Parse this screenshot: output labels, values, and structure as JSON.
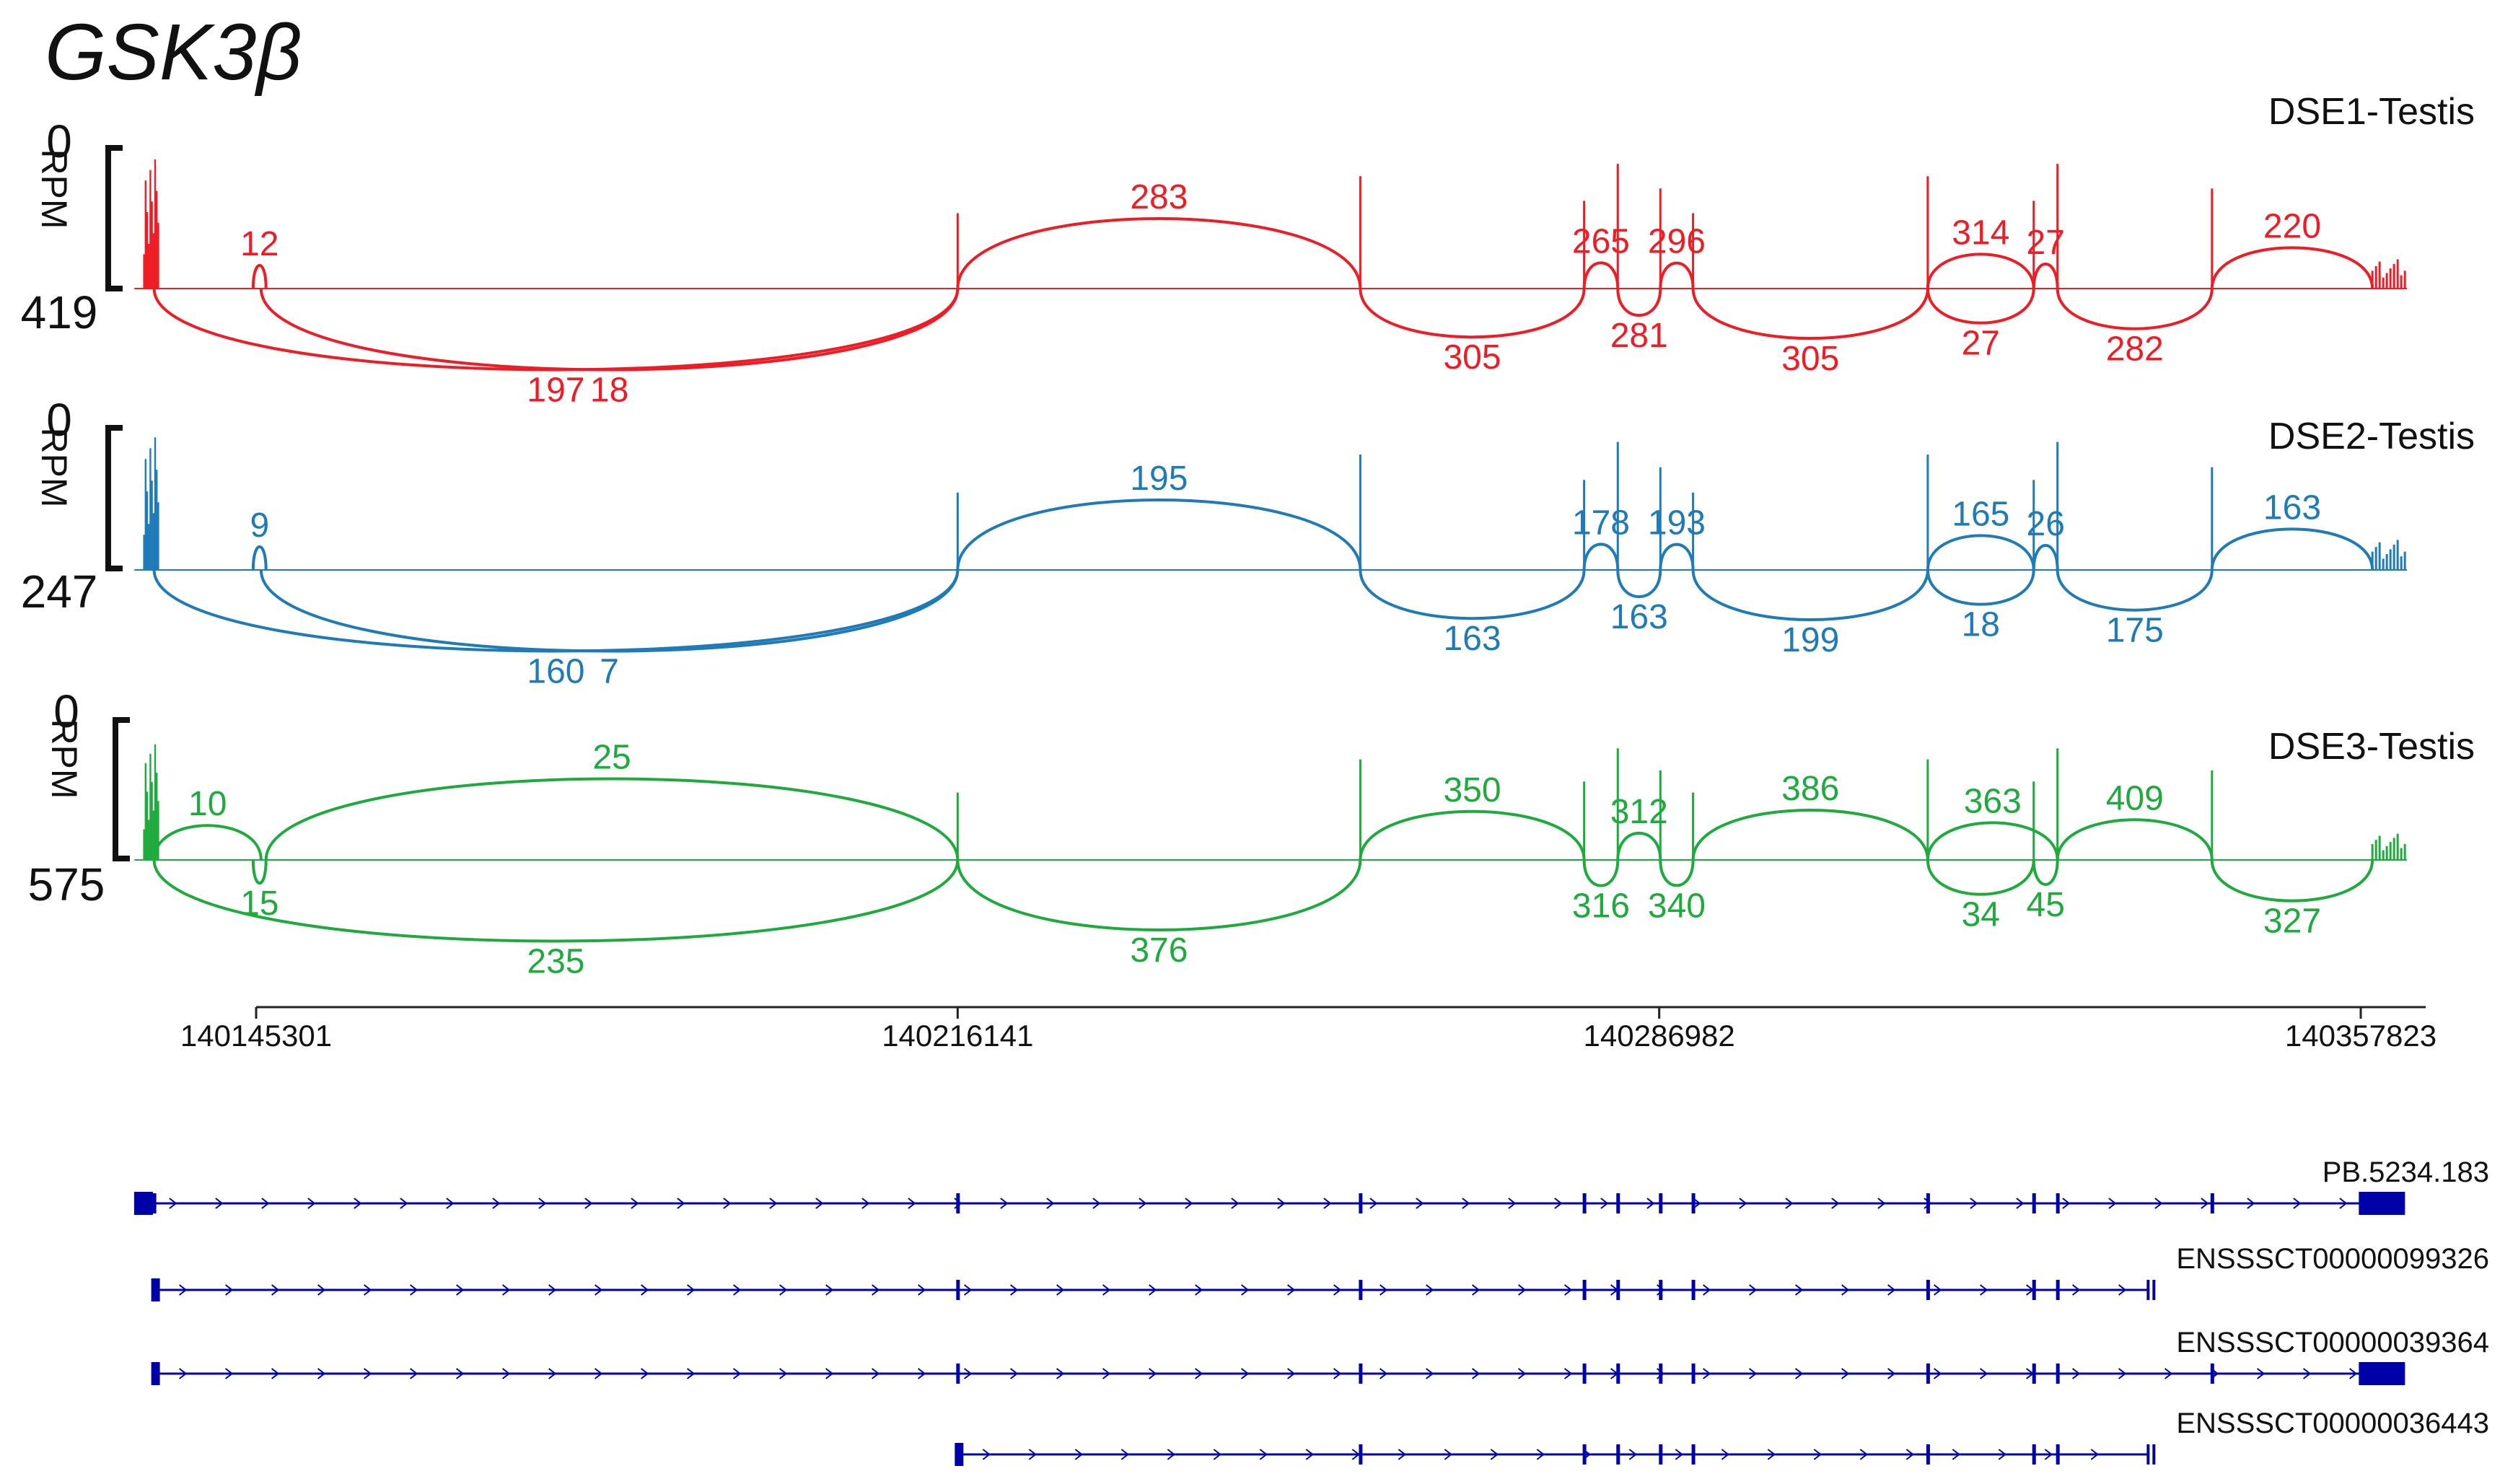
{
  "gene_title": "GSK3β",
  "colors": {
    "dse1": "#ee1c24",
    "dse2": "#1f7ab8",
    "dse3": "#1eaa3c",
    "annotation": "#0000a8",
    "axis": "#222222"
  },
  "tracks": [
    {
      "id": "dse1",
      "label": "DSE1-Testis",
      "scale_top": "0",
      "scale_bottom": "419",
      "scale_unit": "RPM",
      "junctions": [
        {
          "value": "12",
          "start": 140145000,
          "end": 140146300,
          "side": "up"
        },
        {
          "value": "197",
          "start": 140135000,
          "end": 140216141,
          "side": "down"
        },
        {
          "value": "18",
          "start": 140145800,
          "end": 140216141,
          "side": "down"
        },
        {
          "value": "283",
          "start": 140216141,
          "end": 140256800,
          "side": "up"
        },
        {
          "value": "305",
          "start": 140256800,
          "end": 140279400,
          "side": "down"
        },
        {
          "value": "265",
          "start": 140279400,
          "end": 140282800,
          "side": "up"
        },
        {
          "value": "281",
          "start": 140282800,
          "end": 140287100,
          "side": "down"
        },
        {
          "value": "296",
          "start": 140287100,
          "end": 140290400,
          "side": "up"
        },
        {
          "value": "305",
          "start": 140290400,
          "end": 140314100,
          "side": "down"
        },
        {
          "value": "314",
          "start": 140314100,
          "end": 140324800,
          "side": "up"
        },
        {
          "value": "27",
          "start": 140314100,
          "end": 140324800,
          "side": "down"
        },
        {
          "value": "27",
          "start": 140324800,
          "end": 140327200,
          "side": "up"
        },
        {
          "value": "282",
          "start": 140327200,
          "end": 140342800,
          "side": "down"
        },
        {
          "value": "220",
          "start": 140342800,
          "end": 140359000,
          "side": "up"
        }
      ]
    },
    {
      "id": "dse2",
      "label": "DSE2-Testis",
      "scale_top": "0",
      "scale_bottom": "247",
      "scale_unit": "RPM",
      "junctions": [
        {
          "value": "9",
          "start": 140145000,
          "end": 140146300,
          "side": "up"
        },
        {
          "value": "160",
          "start": 140135000,
          "end": 140216141,
          "side": "down"
        },
        {
          "value": "7",
          "start": 140145800,
          "end": 140216141,
          "side": "down"
        },
        {
          "value": "195",
          "start": 140216141,
          "end": 140256800,
          "side": "up"
        },
        {
          "value": "163",
          "start": 140256800,
          "end": 140279400,
          "side": "down"
        },
        {
          "value": "178",
          "start": 140279400,
          "end": 140282800,
          "side": "up"
        },
        {
          "value": "163",
          "start": 140282800,
          "end": 140287100,
          "side": "down"
        },
        {
          "value": "193",
          "start": 140287100,
          "end": 140290400,
          "side": "up"
        },
        {
          "value": "199",
          "start": 140290400,
          "end": 140314100,
          "side": "down"
        },
        {
          "value": "165",
          "start": 140314100,
          "end": 140324800,
          "side": "up"
        },
        {
          "value": "18",
          "start": 140314100,
          "end": 140324800,
          "side": "down"
        },
        {
          "value": "26",
          "start": 140324800,
          "end": 140327200,
          "side": "up"
        },
        {
          "value": "175",
          "start": 140327200,
          "end": 140342800,
          "side": "down"
        },
        {
          "value": "163",
          "start": 140342800,
          "end": 140359000,
          "side": "up"
        }
      ]
    },
    {
      "id": "dse3",
      "label": "DSE3-Testis",
      "scale_top": "0",
      "scale_bottom": "575",
      "scale_unit": "RPM",
      "junctions": [
        {
          "value": "10",
          "start": 140135000,
          "end": 140145800,
          "side": "up"
        },
        {
          "value": "15",
          "start": 140145000,
          "end": 140146300,
          "side": "down"
        },
        {
          "value": "25",
          "start": 140146300,
          "end": 140216141,
          "side": "up"
        },
        {
          "value": "235",
          "start": 140135000,
          "end": 140216141,
          "side": "down"
        },
        {
          "value": "376",
          "start": 140216141,
          "end": 140256800,
          "side": "down"
        },
        {
          "value": "350",
          "start": 140256800,
          "end": 140279400,
          "side": "up"
        },
        {
          "value": "316",
          "start": 140279400,
          "end": 140282800,
          "side": "down"
        },
        {
          "value": "312",
          "start": 140282800,
          "end": 140287100,
          "side": "up"
        },
        {
          "value": "340",
          "start": 140287100,
          "end": 140290400,
          "side": "down"
        },
        {
          "value": "386",
          "start": 140290400,
          "end": 140314100,
          "side": "up"
        },
        {
          "value": "363",
          "start": 140314100,
          "end": 140327200,
          "side": "up"
        },
        {
          "value": "34",
          "start": 140314100,
          "end": 140324800,
          "side": "down"
        },
        {
          "value": "45",
          "start": 140324800,
          "end": 140327200,
          "side": "down"
        },
        {
          "value": "409",
          "start": 140327200,
          "end": 140342800,
          "side": "up"
        },
        {
          "value": "327",
          "start": 140342800,
          "end": 140359000,
          "side": "down"
        }
      ]
    }
  ],
  "axis": {
    "ticks": [
      {
        "label": "140145301",
        "value": 140145301
      },
      {
        "label": "140216141",
        "value": 140216141
      },
      {
        "label": "140286982",
        "value": 140286982
      },
      {
        "label": "140357823",
        "value": 140357823
      }
    ]
  },
  "transcripts": [
    {
      "id": "PB.5234.183",
      "start": 140134000,
      "end": 140362000
    },
    {
      "id": "ENSSSCT00000099326",
      "start": 140135000,
      "end": 140336500
    },
    {
      "id": "ENSSSCT00000039364",
      "start": 140135000,
      "end": 140362000
    },
    {
      "id": "ENSSSCT00000036443",
      "start": 140216141,
      "end": 140336500
    }
  ]
}
